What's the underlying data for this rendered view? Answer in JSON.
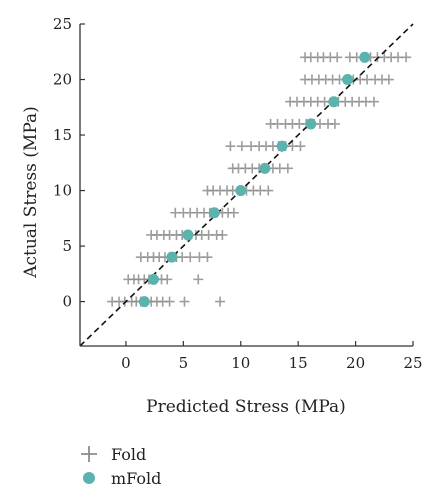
{
  "chart_data": {
    "type": "scatter",
    "title": "",
    "xlabel": "Predicted Stress (MPa)",
    "ylabel": "Actual Stress (MPa)",
    "xlim": [
      -4,
      25
    ],
    "ylim": [
      -4,
      25
    ],
    "xticks": [
      0,
      5,
      10,
      15,
      20,
      25
    ],
    "yticks": [
      0,
      5,
      10,
      15,
      20,
      25
    ],
    "grid": false,
    "legend_position": "bottom-left",
    "reference_line": {
      "x": [
        -4,
        25
      ],
      "y": [
        -4,
        25
      ],
      "style": "dashed"
    },
    "series": [
      {
        "name": "Fold",
        "marker": "plus",
        "color": "#8c8c8c",
        "points": [
          [
            -1.2,
            0
          ],
          [
            -0.6,
            0
          ],
          [
            -0.1,
            0
          ],
          [
            0.5,
            0
          ],
          [
            0.9,
            0
          ],
          [
            1.3,
            0
          ],
          [
            1.8,
            0
          ],
          [
            2.2,
            0
          ],
          [
            2.7,
            0
          ],
          [
            3.2,
            0
          ],
          [
            3.8,
            0
          ],
          [
            5.1,
            0
          ],
          [
            8.2,
            0
          ],
          [
            0.2,
            2
          ],
          [
            0.7,
            2
          ],
          [
            1.1,
            2
          ],
          [
            1.6,
            2
          ],
          [
            2.0,
            2
          ],
          [
            2.6,
            2
          ],
          [
            3.1,
            2
          ],
          [
            3.6,
            2
          ],
          [
            6.3,
            2
          ],
          [
            1.3,
            4
          ],
          [
            1.9,
            4
          ],
          [
            2.4,
            4
          ],
          [
            2.9,
            4
          ],
          [
            3.4,
            4
          ],
          [
            3.9,
            4
          ],
          [
            4.4,
            4
          ],
          [
            4.9,
            4
          ],
          [
            5.6,
            4
          ],
          [
            6.4,
            4
          ],
          [
            7.1,
            4
          ],
          [
            2.2,
            6
          ],
          [
            2.7,
            6
          ],
          [
            3.3,
            6
          ],
          [
            3.8,
            6
          ],
          [
            4.4,
            6
          ],
          [
            4.9,
            6
          ],
          [
            5.5,
            6
          ],
          [
            6.1,
            6
          ],
          [
            6.6,
            6
          ],
          [
            7.2,
            6
          ],
          [
            7.9,
            6
          ],
          [
            8.4,
            6
          ],
          [
            4.3,
            8
          ],
          [
            5.0,
            8
          ],
          [
            5.6,
            8
          ],
          [
            6.2,
            8
          ],
          [
            6.8,
            8
          ],
          [
            7.3,
            8
          ],
          [
            7.9,
            8
          ],
          [
            8.4,
            8
          ],
          [
            8.9,
            8
          ],
          [
            9.4,
            8
          ],
          [
            7.1,
            10
          ],
          [
            7.6,
            10
          ],
          [
            8.2,
            10
          ],
          [
            8.8,
            10
          ],
          [
            9.3,
            10
          ],
          [
            9.9,
            10
          ],
          [
            10.5,
            10
          ],
          [
            11.1,
            10
          ],
          [
            11.7,
            10
          ],
          [
            12.4,
            10
          ],
          [
            9.3,
            12
          ],
          [
            9.8,
            12
          ],
          [
            10.4,
            12
          ],
          [
            11.0,
            12
          ],
          [
            11.6,
            12
          ],
          [
            12.2,
            12
          ],
          [
            12.8,
            12
          ],
          [
            13.4,
            12
          ],
          [
            14.1,
            12
          ],
          [
            9.1,
            14
          ],
          [
            10.1,
            14
          ],
          [
            10.9,
            14
          ],
          [
            11.6,
            14
          ],
          [
            12.2,
            14
          ],
          [
            12.8,
            14
          ],
          [
            13.3,
            14
          ],
          [
            13.9,
            14
          ],
          [
            14.5,
            14
          ],
          [
            15.2,
            14
          ],
          [
            12.6,
            16
          ],
          [
            13.2,
            16
          ],
          [
            13.9,
            16
          ],
          [
            14.5,
            16
          ],
          [
            15.1,
            16
          ],
          [
            15.7,
            16
          ],
          [
            16.3,
            16
          ],
          [
            16.9,
            16
          ],
          [
            17.6,
            16
          ],
          [
            18.2,
            16
          ],
          [
            14.3,
            18
          ],
          [
            14.9,
            18
          ],
          [
            15.5,
            18
          ],
          [
            16.1,
            18
          ],
          [
            16.7,
            18
          ],
          [
            17.3,
            18
          ],
          [
            17.9,
            18
          ],
          [
            18.5,
            18
          ],
          [
            19.1,
            18
          ],
          [
            19.7,
            18
          ],
          [
            20.3,
            18
          ],
          [
            20.9,
            18
          ],
          [
            21.6,
            18
          ],
          [
            15.6,
            20
          ],
          [
            16.2,
            20
          ],
          [
            16.8,
            20
          ],
          [
            17.4,
            20
          ],
          [
            18.0,
            20
          ],
          [
            18.6,
            20
          ],
          [
            19.2,
            20
          ],
          [
            19.8,
            20
          ],
          [
            20.4,
            20
          ],
          [
            21.0,
            20
          ],
          [
            21.7,
            20
          ],
          [
            22.3,
            20
          ],
          [
            22.9,
            20
          ],
          [
            15.6,
            22
          ],
          [
            16.1,
            22
          ],
          [
            16.7,
            22
          ],
          [
            17.2,
            22
          ],
          [
            17.8,
            22
          ],
          [
            18.4,
            22
          ],
          [
            19.5,
            22
          ],
          [
            20.1,
            22
          ],
          [
            20.7,
            22
          ],
          [
            21.3,
            22
          ],
          [
            21.9,
            22
          ],
          [
            22.5,
            22
          ],
          [
            23.1,
            22
          ],
          [
            23.7,
            22
          ],
          [
            24.4,
            22
          ]
        ]
      },
      {
        "name": "mFold",
        "marker": "circle",
        "color": "#5bb3ad",
        "points": [
          [
            1.6,
            0
          ],
          [
            2.4,
            2
          ],
          [
            4.0,
            4
          ],
          [
            5.4,
            6
          ],
          [
            7.7,
            8
          ],
          [
            10.0,
            10
          ],
          [
            12.1,
            12
          ],
          [
            13.6,
            14
          ],
          [
            16.1,
            16
          ],
          [
            18.1,
            18
          ],
          [
            19.3,
            20
          ],
          [
            20.8,
            22
          ]
        ]
      }
    ]
  }
}
